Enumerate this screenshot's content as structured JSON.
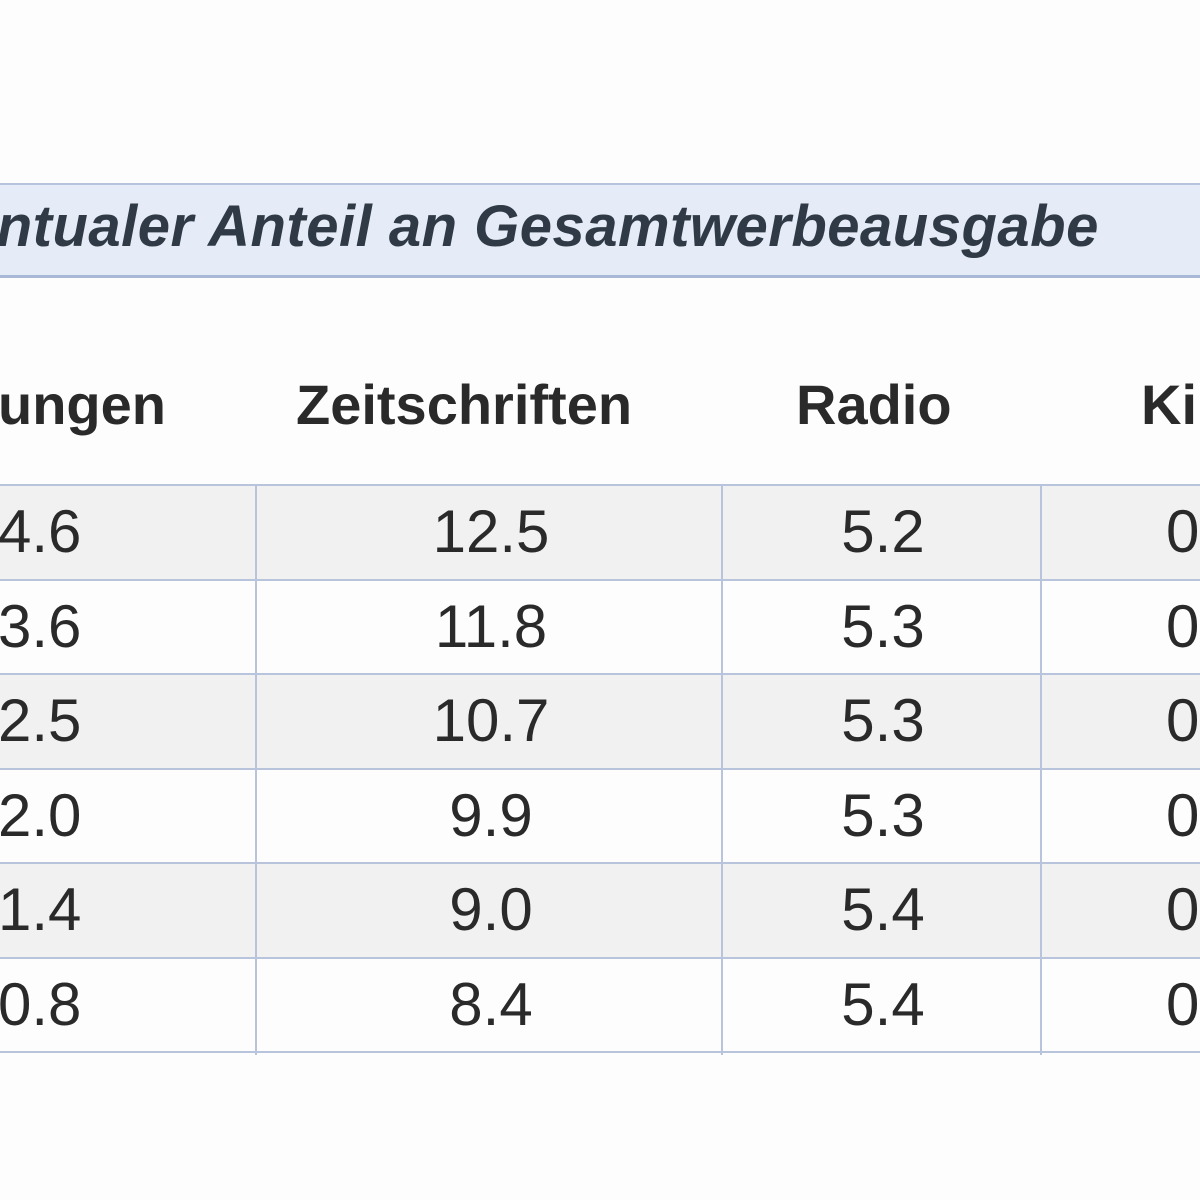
{
  "chart_data": {
    "type": "table",
    "title": "entualer Anteil an Gesamtwerbeausgabe",
    "columns": [
      "ungen",
      "Zeitschriften",
      "Radio",
      "Ki"
    ],
    "rows": [
      [
        "4.6",
        "12.5",
        "5.2",
        "0"
      ],
      [
        "3.6",
        "11.8",
        "5.3",
        "0"
      ],
      [
        "2.5",
        "10.7",
        "5.3",
        "0"
      ],
      [
        "2.0",
        "9.9",
        "5.3",
        "0"
      ],
      [
        "1.4",
        "9.0",
        "5.4",
        "0"
      ],
      [
        "0.8",
        "8.4",
        "5.4",
        "0"
      ]
    ]
  },
  "colors": {
    "title_band": "#e5ebf7",
    "grid_line": "#b7c4dc",
    "row_shade": "#f1f1f1"
  }
}
